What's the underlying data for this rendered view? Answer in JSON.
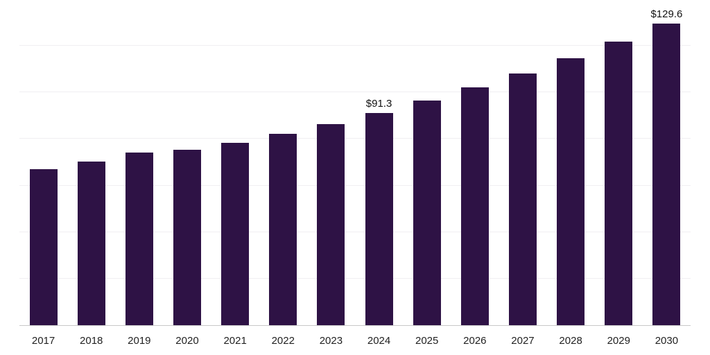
{
  "chart_data": {
    "type": "bar",
    "title": "",
    "xlabel": "",
    "ylabel": "",
    "categories": [
      "2017",
      "2018",
      "2019",
      "2020",
      "2021",
      "2022",
      "2023",
      "2024",
      "2025",
      "2026",
      "2027",
      "2028",
      "2029",
      "2030"
    ],
    "values": [
      67.0,
      70.4,
      74.2,
      75.3,
      78.2,
      82.1,
      86.3,
      91.3,
      96.6,
      102.3,
      108.2,
      114.8,
      121.8,
      129.6
    ],
    "data_labels": {
      "2024": "$91.3",
      "2030": "$129.6"
    },
    "ylim": [
      0,
      140
    ],
    "grid": true,
    "grid_step": 20,
    "legend_position": "none",
    "bar_color": "#2e1245",
    "grid_color": "#f0eff2",
    "axis_line_color": "#c9c9c9",
    "tick_label_color": "#222222",
    "value_label_color": "#111111"
  }
}
